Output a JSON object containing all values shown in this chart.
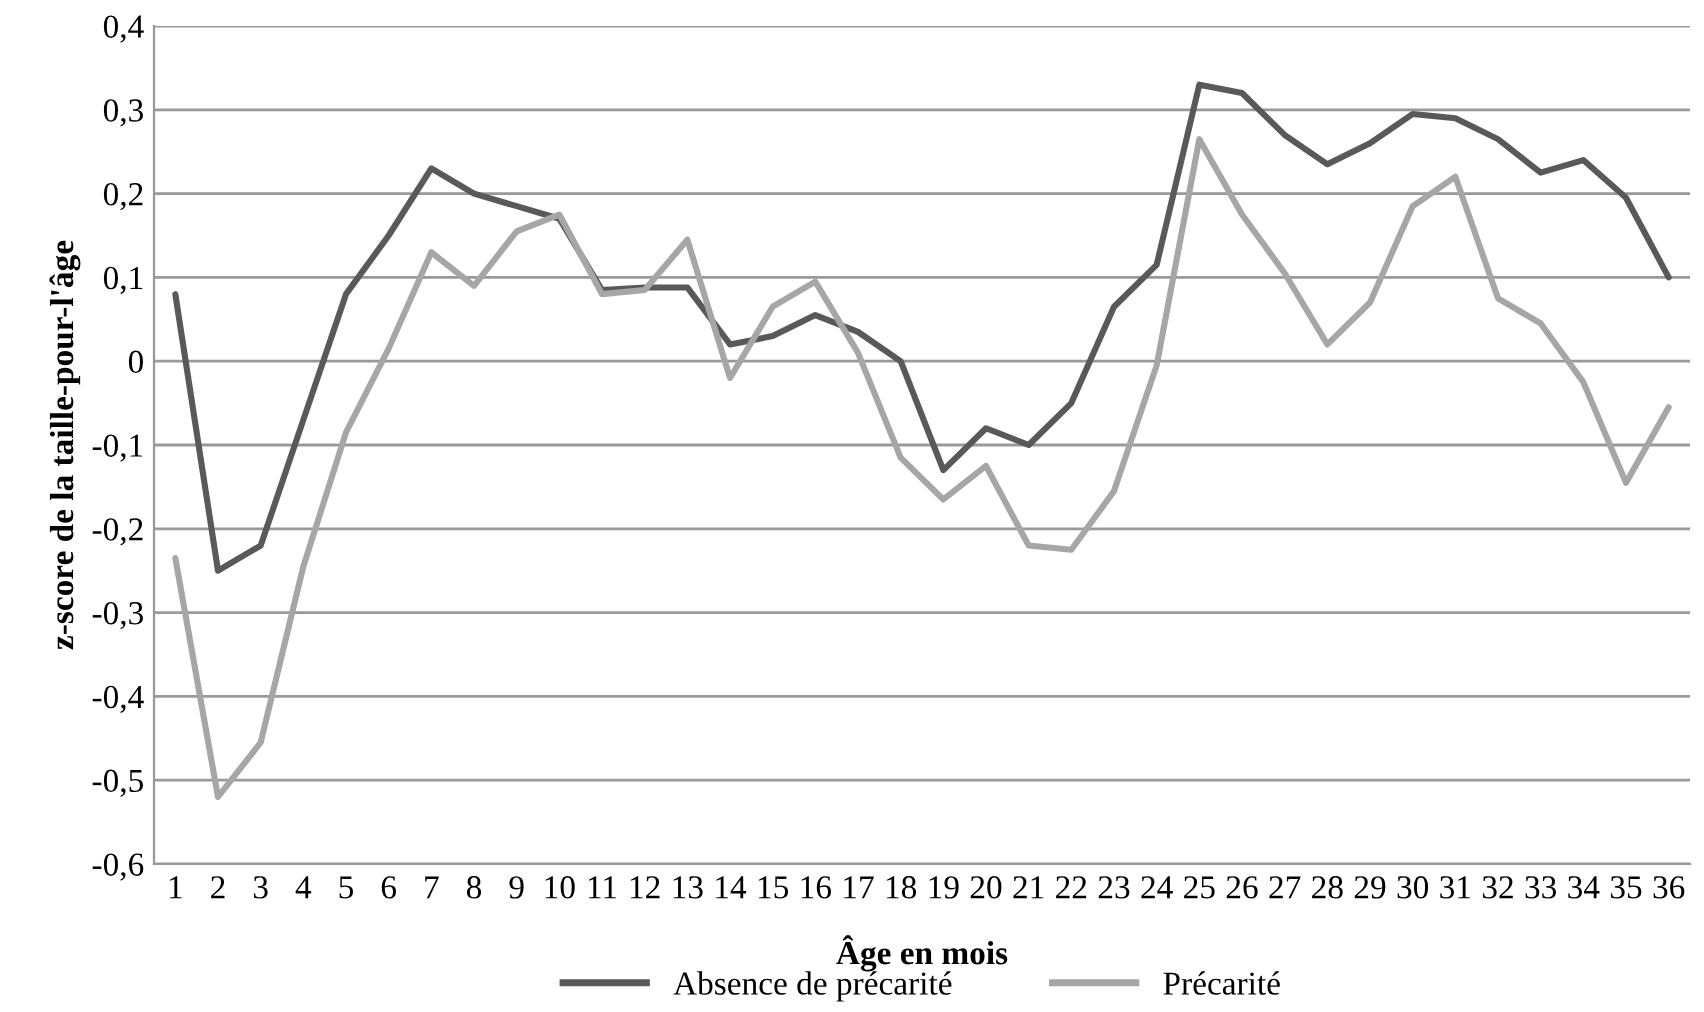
{
  "chart_data": {
    "type": "line",
    "xlabel": "Âge en mois",
    "ylabel": "z-score de la taille-pour-l'âge",
    "categories": [
      "1",
      "2",
      "3",
      "4",
      "5",
      "6",
      "7",
      "8",
      "9",
      "10",
      "11",
      "12",
      "13",
      "14",
      "15",
      "16",
      "17",
      "18",
      "19",
      "20",
      "21",
      "22",
      "23",
      "24",
      "25",
      "26",
      "27",
      "28",
      "29",
      "30",
      "31",
      "32",
      "33",
      "34",
      "35",
      "36"
    ],
    "series": [
      {
        "name": "Absence de précarité",
        "color": "#595959",
        "values": [
          0.08,
          -0.25,
          -0.22,
          -0.07,
          0.08,
          0.15,
          0.23,
          0.2,
          0.185,
          0.17,
          0.085,
          0.088,
          0.088,
          0.02,
          0.03,
          0.055,
          0.035,
          0.0,
          -0.13,
          -0.08,
          -0.1,
          -0.05,
          0.065,
          0.115,
          0.33,
          0.32,
          0.27,
          0.235,
          0.26,
          0.295,
          0.29,
          0.265,
          0.225,
          0.24,
          0.195,
          0.1
        ]
      },
      {
        "name": "Précarité",
        "color": "#a6a6a6",
        "values": [
          -0.235,
          -0.52,
          -0.455,
          -0.245,
          -0.085,
          0.015,
          0.13,
          0.09,
          0.155,
          0.175,
          0.08,
          0.085,
          0.145,
          -0.02,
          0.065,
          0.095,
          0.01,
          -0.115,
          -0.165,
          -0.125,
          -0.22,
          -0.225,
          -0.155,
          -0.005,
          0.265,
          0.175,
          0.105,
          0.02,
          0.07,
          0.185,
          0.22,
          0.075,
          0.045,
          -0.025,
          -0.145,
          -0.055
        ]
      }
    ],
    "ylim": [
      -0.6,
      0.4
    ],
    "yticks": [
      {
        "value": -0.6,
        "label": "-0,6"
      },
      {
        "value": -0.5,
        "label": "-0,5"
      },
      {
        "value": -0.4,
        "label": "-0,4"
      },
      {
        "value": -0.3,
        "label": "-0,3"
      },
      {
        "value": -0.2,
        "label": "-0,2"
      },
      {
        "value": -0.1,
        "label": "-0,1"
      },
      {
        "value": 0,
        "label": "0"
      },
      {
        "value": 0.1,
        "label": "0,1"
      },
      {
        "value": 0.2,
        "label": "0,2"
      },
      {
        "value": 0.3,
        "label": "0,3"
      },
      {
        "value": 0.4,
        "label": "0,4"
      }
    ],
    "grid": "y",
    "legend": "bottom",
    "marker": "none",
    "line_style": "solid"
  }
}
